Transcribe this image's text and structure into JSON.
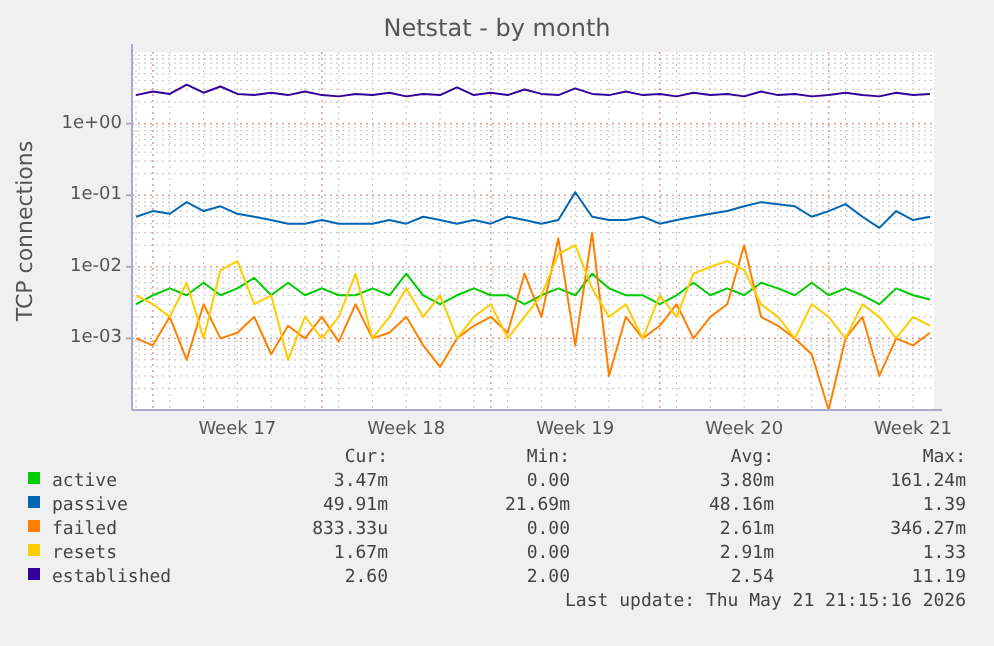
{
  "chart_data": {
    "type": "line",
    "title": "Netstat - by month",
    "ylabel": "TCP connections",
    "log": "y",
    "grid": true,
    "legend": "bottom",
    "line_style": "solid",
    "ylim": [
      0.0001,
      10
    ],
    "yticks": [
      {
        "value": 0.001,
        "label": "1e-03"
      },
      {
        "value": 0.01,
        "label": "1e-02"
      },
      {
        "value": 0.1,
        "label": "1e-01"
      },
      {
        "value": 1,
        "label": "1e+00"
      }
    ],
    "categories": [
      null,
      null,
      null,
      null,
      null,
      null,
      "Week 17",
      null,
      null,
      null,
      null,
      null,
      null,
      null,
      null,
      null,
      "Week 18",
      null,
      null,
      null,
      null,
      null,
      null,
      null,
      null,
      null,
      "Week 19",
      null,
      null,
      null,
      null,
      null,
      null,
      null,
      null,
      null,
      "Week 20",
      null,
      null,
      null,
      null,
      null,
      null,
      null,
      null,
      null,
      "Week 21",
      null
    ],
    "series": [
      {
        "name": "active",
        "color": "#00cc00",
        "values": [
          0.003,
          0.004,
          0.005,
          0.004,
          0.006,
          0.004,
          0.005,
          0.007,
          0.004,
          0.006,
          0.004,
          0.005,
          0.004,
          0.004,
          0.005,
          0.004,
          0.008,
          0.004,
          0.003,
          0.004,
          0.005,
          0.004,
          0.004,
          0.003,
          0.004,
          0.005,
          0.004,
          0.008,
          0.005,
          0.004,
          0.004,
          0.003,
          0.004,
          0.006,
          0.004,
          0.005,
          0.004,
          0.006,
          0.005,
          0.004,
          0.006,
          0.004,
          0.005,
          0.004,
          0.003,
          0.005,
          0.004,
          0.0035
        ]
      },
      {
        "name": "passive",
        "color": "#0066b3",
        "values": [
          0.05,
          0.06,
          0.055,
          0.08,
          0.06,
          0.07,
          0.055,
          0.05,
          0.045,
          0.04,
          0.04,
          0.045,
          0.04,
          0.04,
          0.04,
          0.045,
          0.04,
          0.05,
          0.045,
          0.04,
          0.045,
          0.04,
          0.05,
          0.045,
          0.04,
          0.045,
          0.11,
          0.05,
          0.045,
          0.045,
          0.05,
          0.04,
          0.045,
          0.05,
          0.055,
          0.06,
          0.07,
          0.08,
          0.075,
          0.07,
          0.05,
          0.06,
          0.075,
          0.05,
          0.035,
          0.06,
          0.045,
          0.05
        ]
      },
      {
        "name": "failed",
        "color": "#ff8000",
        "values": [
          0.001,
          0.0008,
          0.002,
          0.0005,
          0.003,
          0.001,
          0.0012,
          0.002,
          0.0006,
          0.0015,
          0.001,
          0.002,
          0.0009,
          0.003,
          0.001,
          0.0012,
          0.002,
          0.0008,
          0.0004,
          0.001,
          0.0015,
          0.002,
          0.0012,
          0.008,
          0.002,
          0.025,
          0.0008,
          0.03,
          0.0003,
          0.002,
          0.001,
          0.0015,
          0.003,
          0.001,
          0.002,
          0.003,
          0.02,
          0.002,
          0.0015,
          0.001,
          0.0006,
          0.0001,
          0.001,
          0.002,
          0.0003,
          0.001,
          0.0008,
          0.0012
        ]
      },
      {
        "name": "resets",
        "color": "#ffcc00",
        "values": [
          0.004,
          0.003,
          0.002,
          0.006,
          0.001,
          0.009,
          0.012,
          0.003,
          0.004,
          0.0005,
          0.002,
          0.001,
          0.002,
          0.008,
          0.001,
          0.002,
          0.005,
          0.002,
          0.004,
          0.001,
          0.002,
          0.003,
          0.001,
          0.002,
          0.004,
          0.015,
          0.02,
          0.005,
          0.002,
          0.003,
          0.001,
          0.004,
          0.002,
          0.008,
          0.01,
          0.012,
          0.009,
          0.003,
          0.002,
          0.001,
          0.003,
          0.002,
          0.001,
          0.003,
          0.002,
          0.001,
          0.002,
          0.0015
        ]
      },
      {
        "name": "established",
        "color": "#330099",
        "values": [
          2.5,
          2.8,
          2.6,
          3.5,
          2.7,
          3.3,
          2.6,
          2.5,
          2.7,
          2.5,
          2.8,
          2.5,
          2.4,
          2.6,
          2.5,
          2.7,
          2.4,
          2.6,
          2.5,
          3.2,
          2.5,
          2.7,
          2.5,
          3.0,
          2.6,
          2.5,
          3.1,
          2.6,
          2.5,
          2.8,
          2.5,
          2.6,
          2.4,
          2.7,
          2.5,
          2.6,
          2.4,
          2.8,
          2.5,
          2.6,
          2.4,
          2.5,
          2.7,
          2.5,
          2.4,
          2.7,
          2.5,
          2.6
        ]
      }
    ],
    "annotations": [
      "Cur:",
      "Min:",
      "Avg:",
      "Max:",
      "3.47m",
      "0.00",
      "3.80m",
      "161.24m",
      "49.91m",
      "21.69m",
      "48.16m",
      "1.39",
      "833.33u",
      "0.00",
      "2.61m",
      "346.27m",
      "1.67m",
      "0.00",
      "2.91m",
      "1.33",
      "2.60",
      "2.00",
      "2.54",
      "11.19",
      "Last update: Thu May 21 21:15:16 2026"
    ]
  }
}
